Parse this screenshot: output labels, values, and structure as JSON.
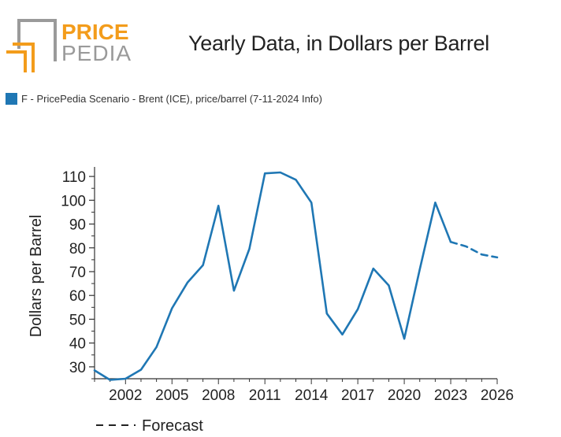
{
  "brand": {
    "logo_line1": "PRICE",
    "logo_line2": "PEDIA",
    "accent": "#f39c1b",
    "grey": "#9a9a9a"
  },
  "legend": {
    "label": "F - PricePedia Scenario - Brent (ICE), price/barrel (7-11-2024 Info)",
    "color": "#1f77b4"
  },
  "chart_data": {
    "type": "line",
    "title": "Yearly Data, in Dollars per Barrel",
    "xlabel": "",
    "ylabel": "Dollars per Barrel",
    "xlim": [
      2000,
      2026
    ],
    "ylim": [
      25,
      114
    ],
    "x_ticks": [
      2002,
      2005,
      2008,
      2011,
      2014,
      2017,
      2020,
      2023,
      2026
    ],
    "y_ticks": [
      30,
      40,
      50,
      60,
      70,
      80,
      90,
      100,
      110
    ],
    "grid": false,
    "legend_position": "top-left",
    "series": [
      {
        "name": "F - PricePedia Scenario - Brent (ICE), price/barrel (7-11-2024 Info)",
        "color": "#1f77b4",
        "style": "solid",
        "x": [
          2000,
          2001,
          2002,
          2003,
          2004,
          2005,
          2006,
          2007,
          2008,
          2009,
          2010,
          2011,
          2012,
          2013,
          2014,
          2015,
          2016,
          2017,
          2018,
          2019,
          2020,
          2021,
          2022,
          2023
        ],
        "y": [
          28.5,
          24.5,
          25.0,
          28.8,
          38.3,
          54.6,
          65.4,
          72.7,
          97.7,
          62.0,
          79.6,
          111.3,
          111.7,
          108.6,
          99.0,
          52.4,
          43.6,
          54.2,
          71.3,
          64.2,
          41.8,
          70.9,
          99.0,
          82.5
        ]
      },
      {
        "name": "Forecast",
        "color": "#1f77b4",
        "style": "dashed",
        "x": [
          2023,
          2024,
          2025,
          2026
        ],
        "y": [
          82.5,
          80.6,
          77.2,
          76.0
        ]
      }
    ],
    "footer_legend": "Forecast"
  }
}
